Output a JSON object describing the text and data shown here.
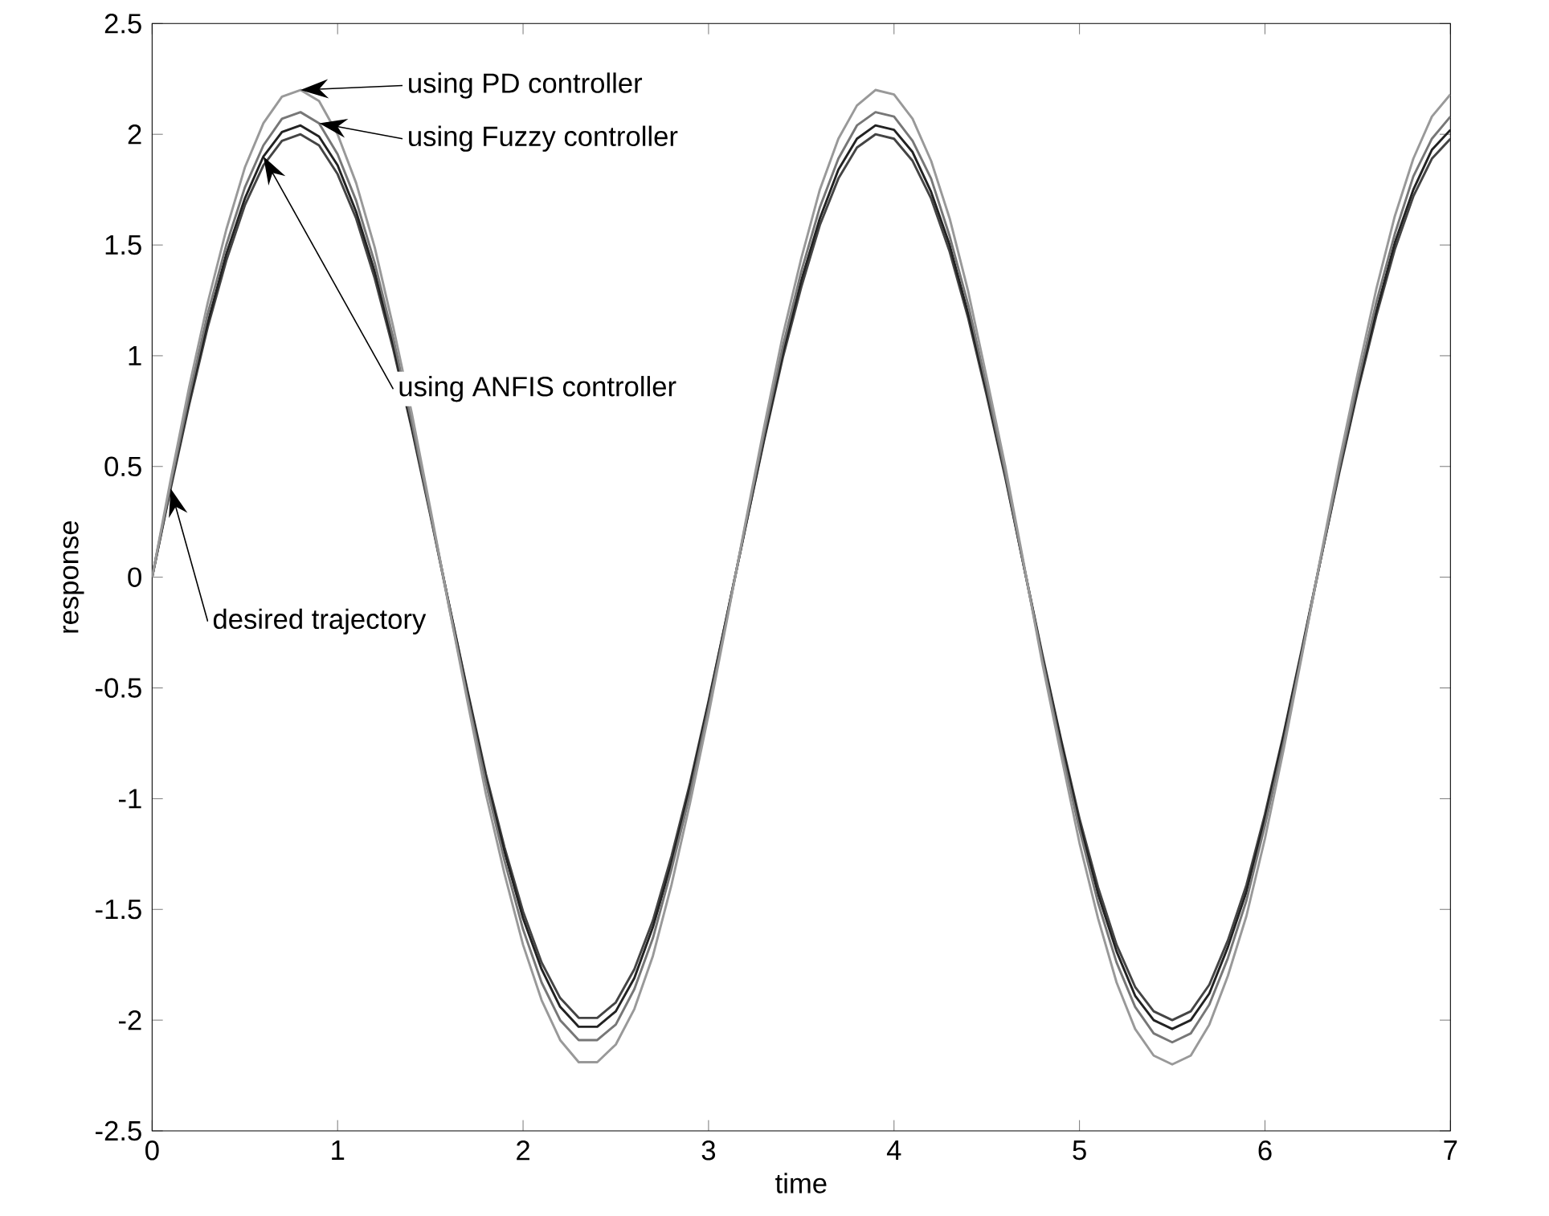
{
  "chart_data": {
    "type": "line",
    "xlabel": "time",
    "ylabel": "response",
    "xlim": [
      0,
      7
    ],
    "ylim": [
      -2.5,
      2.5
    ],
    "xticks": [
      0,
      1,
      2,
      3,
      4,
      5,
      6,
      7
    ],
    "yticks": [
      -2.5,
      -2,
      -1.5,
      -1,
      -0.5,
      0,
      0.5,
      1,
      1.5,
      2,
      2.5
    ],
    "grid": false,
    "legend": false,
    "marker": "none",
    "line_style": "solid",
    "x": [
      0,
      0.1,
      0.2,
      0.3,
      0.4,
      0.5,
      0.6,
      0.7,
      0.8,
      0.9,
      1,
      1.1,
      1.2,
      1.3,
      1.4,
      1.5,
      1.6,
      1.7,
      1.8,
      1.9,
      2,
      2.1,
      2.2,
      2.3,
      2.4,
      2.5,
      2.6,
      2.7,
      2.8,
      2.9,
      3,
      3.1,
      3.2,
      3.3,
      3.4,
      3.5,
      3.6,
      3.7,
      3.8,
      3.9,
      4,
      4.1,
      4.2,
      4.3,
      4.4,
      4.5,
      4.6,
      4.7,
      4.8,
      4.9,
      5,
      5.1,
      5.2,
      5.3,
      5.4,
      5.5,
      5.6,
      5.7,
      5.8,
      5.9,
      6,
      6.1,
      6.2,
      6.3,
      6.4,
      6.5,
      6.6,
      6.7,
      6.8,
      6.9,
      7
    ],
    "series": [
      {
        "name": "desired trajectory",
        "color": "#444444",
        "values": [
          0,
          0.4,
          0.78,
          1.13,
          1.43,
          1.68,
          1.86,
          1.97,
          2.0,
          1.95,
          1.82,
          1.62,
          1.35,
          1.03,
          0.67,
          0.28,
          -0.12,
          -0.51,
          -0.89,
          -1.22,
          -1.51,
          -1.74,
          -1.9,
          -1.99,
          -1.99,
          -1.92,
          -1.77,
          -1.55,
          -1.26,
          -0.93,
          -0.56,
          -0.17,
          0.23,
          0.62,
          0.99,
          1.31,
          1.59,
          1.8,
          1.94,
          2.0,
          1.98,
          1.88,
          1.71,
          1.47,
          1.17,
          0.82,
          0.45,
          0.05,
          -0.35,
          -0.73,
          -1.09,
          -1.4,
          -1.66,
          -1.85,
          -1.96,
          -2.0,
          -1.96,
          -1.84,
          -1.64,
          -1.39,
          -1.07,
          -0.71,
          -0.32,
          0.08,
          0.47,
          0.84,
          1.18,
          1.48,
          1.72,
          1.89,
          1.98
        ]
      },
      {
        "name": "using ANFIS controller",
        "color": "#222222",
        "values": [
          0,
          0.41,
          0.8,
          1.15,
          1.46,
          1.71,
          1.9,
          2.01,
          2.04,
          1.99,
          1.86,
          1.65,
          1.38,
          1.05,
          0.68,
          0.29,
          -0.12,
          -0.52,
          -0.91,
          -1.24,
          -1.54,
          -1.77,
          -1.94,
          -2.03,
          -2.03,
          -1.96,
          -1.81,
          -1.58,
          -1.29,
          -0.95,
          -0.57,
          -0.17,
          0.23,
          0.63,
          1.01,
          1.34,
          1.62,
          1.84,
          1.98,
          2.04,
          2.02,
          1.92,
          1.74,
          1.5,
          1.19,
          0.84,
          0.46,
          0.05,
          -0.36,
          -0.74,
          -1.11,
          -1.43,
          -1.69,
          -1.89,
          -2.0,
          -2.04,
          -2.0,
          -1.88,
          -1.67,
          -1.42,
          -1.09,
          -0.72,
          -0.33,
          0.08,
          0.48,
          0.86,
          1.2,
          1.51,
          1.75,
          1.93,
          2.02
        ]
      },
      {
        "name": "using Fuzzy controller",
        "color": "#777777",
        "values": [
          0,
          0.42,
          0.82,
          1.19,
          1.5,
          1.76,
          1.95,
          2.07,
          2.1,
          2.05,
          1.91,
          1.7,
          1.42,
          1.08,
          0.7,
          0.29,
          -0.13,
          -0.54,
          -0.93,
          -1.28,
          -1.59,
          -1.83,
          -2.0,
          -2.09,
          -2.09,
          -2.02,
          -1.86,
          -1.63,
          -1.32,
          -0.98,
          -0.59,
          -0.18,
          0.24,
          0.65,
          1.04,
          1.38,
          1.67,
          1.89,
          2.04,
          2.1,
          2.08,
          1.97,
          1.8,
          1.54,
          1.23,
          0.86,
          0.47,
          0.05,
          -0.37,
          -0.77,
          -1.14,
          -1.47,
          -1.74,
          -1.94,
          -2.06,
          -2.1,
          -2.06,
          -1.93,
          -1.72,
          -1.46,
          -1.12,
          -0.75,
          -0.34,
          0.08,
          0.49,
          0.88,
          1.24,
          1.55,
          1.81,
          1.98,
          2.08
        ]
      },
      {
        "name": "using PD controller",
        "color": "#999999",
        "values": [
          0,
          0.44,
          0.86,
          1.24,
          1.57,
          1.85,
          2.05,
          2.17,
          2.2,
          2.15,
          2.0,
          1.78,
          1.49,
          1.13,
          0.74,
          0.31,
          -0.13,
          -0.56,
          -0.98,
          -1.34,
          -1.66,
          -1.91,
          -2.09,
          -2.19,
          -2.19,
          -2.11,
          -1.95,
          -1.71,
          -1.39,
          -1.02,
          -0.62,
          -0.19,
          0.25,
          0.68,
          1.09,
          1.44,
          1.75,
          1.98,
          2.13,
          2.2,
          2.18,
          2.07,
          1.88,
          1.62,
          1.29,
          0.9,
          0.5,
          0.06,
          -0.39,
          -0.8,
          -1.2,
          -1.54,
          -1.83,
          -2.04,
          -2.16,
          -2.2,
          -2.16,
          -2.02,
          -1.8,
          -1.53,
          -1.18,
          -0.78,
          -0.35,
          0.09,
          0.52,
          0.92,
          1.3,
          1.63,
          1.89,
          2.08,
          2.18
        ]
      }
    ]
  }
}
